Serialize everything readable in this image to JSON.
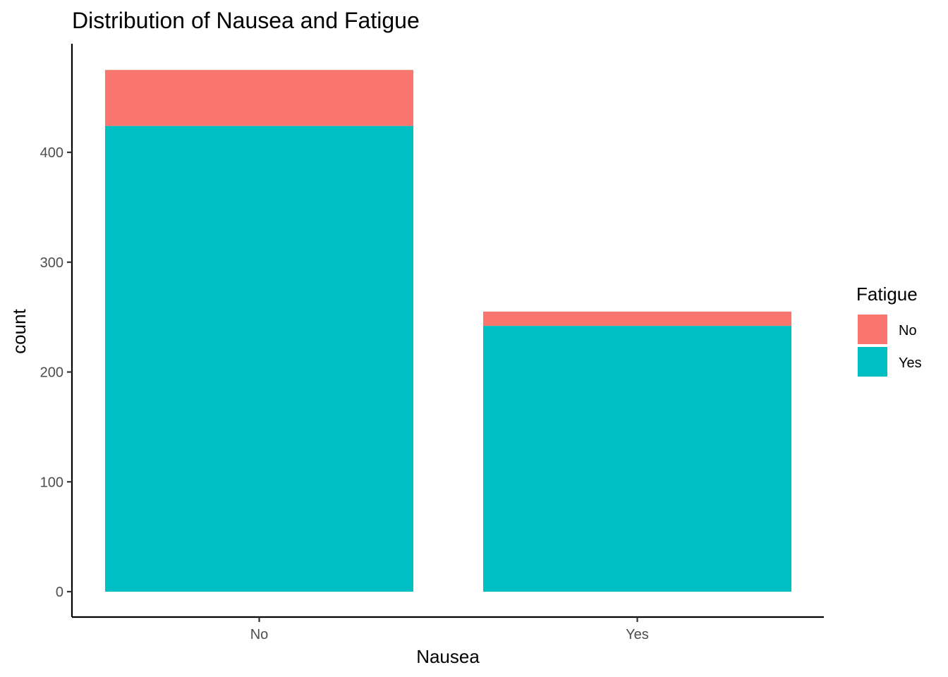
{
  "chart_data": {
    "type": "bar",
    "stacked": true,
    "title": "Distribution of Nausea and Fatigue",
    "xlabel": "Nausea",
    "ylabel": "count",
    "categories": [
      "No",
      "Yes"
    ],
    "series": [
      {
        "name": "No",
        "values": [
          51,
          13
        ],
        "color": "#F8766D"
      },
      {
        "name": "Yes",
        "values": [
          424,
          242
        ],
        "color": "#00BFC4"
      }
    ],
    "stack_order": [
      "Yes",
      "No"
    ],
    "ylim": [
      0,
      475
    ],
    "yticks": [
      0,
      100,
      200,
      300,
      400
    ],
    "legend": {
      "title": "Fatigue",
      "position": "right"
    },
    "grid": false
  }
}
